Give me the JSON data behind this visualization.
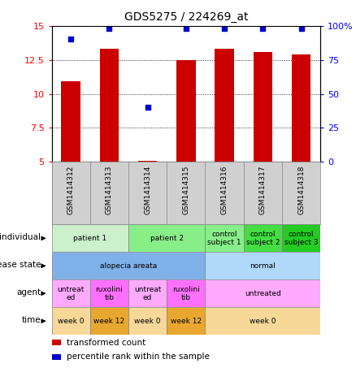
{
  "title": "GDS5275 / 224269_at",
  "samples": [
    "GSM1414312",
    "GSM1414313",
    "GSM1414314",
    "GSM1414315",
    "GSM1414316",
    "GSM1414317",
    "GSM1414318"
  ],
  "bar_values": [
    10.9,
    13.3,
    5.05,
    12.5,
    13.3,
    13.1,
    12.9
  ],
  "dot_values": [
    90,
    98,
    40,
    98,
    98,
    98,
    98
  ],
  "ylim_left": [
    5,
    15
  ],
  "ylim_right": [
    0,
    100
  ],
  "yticks_left": [
    5,
    7.5,
    10,
    12.5,
    15
  ],
  "yticks_right": [
    0,
    25,
    50,
    75,
    100
  ],
  "bar_color": "#cc0000",
  "dot_color": "#0000cc",
  "xticklabel_bg": "#d0d0d0",
  "annotation_rows": [
    {
      "key": "individual",
      "label": "individual",
      "groups": [
        {
          "span": [
            0,
            2
          ],
          "text": "patient 1",
          "color": "#ccf0cc"
        },
        {
          "span": [
            2,
            4
          ],
          "text": "patient 2",
          "color": "#88ee88"
        },
        {
          "span": [
            4,
            5
          ],
          "text": "control\nsubject 1",
          "color": "#88ee88"
        },
        {
          "span": [
            5,
            6
          ],
          "text": "control\nsubject 2",
          "color": "#44dd44"
        },
        {
          "span": [
            6,
            7
          ],
          "text": "control\nsubject 3",
          "color": "#22cc22"
        }
      ]
    },
    {
      "key": "disease_state",
      "label": "disease state",
      "groups": [
        {
          "span": [
            0,
            4
          ],
          "text": "alopecia areata",
          "color": "#80b0e8"
        },
        {
          "span": [
            4,
            7
          ],
          "text": "normal",
          "color": "#b0d8f8"
        }
      ]
    },
    {
      "key": "agent",
      "label": "agent",
      "groups": [
        {
          "span": [
            0,
            1
          ],
          "text": "untreat\ned",
          "color": "#ffaaff"
        },
        {
          "span": [
            1,
            2
          ],
          "text": "ruxolini\ntib",
          "color": "#ff70ff"
        },
        {
          "span": [
            2,
            3
          ],
          "text": "untreat\ned",
          "color": "#ffaaff"
        },
        {
          "span": [
            3,
            4
          ],
          "text": "ruxolini\ntib",
          "color": "#ff70ff"
        },
        {
          "span": [
            4,
            7
          ],
          "text": "untreated",
          "color": "#ffaaff"
        }
      ]
    },
    {
      "key": "time",
      "label": "time",
      "groups": [
        {
          "span": [
            0,
            1
          ],
          "text": "week 0",
          "color": "#f8d898"
        },
        {
          "span": [
            1,
            2
          ],
          "text": "week 12",
          "color": "#e8a830"
        },
        {
          "span": [
            2,
            3
          ],
          "text": "week 0",
          "color": "#f8d898"
        },
        {
          "span": [
            3,
            4
          ],
          "text": "week 12",
          "color": "#e8a830"
        },
        {
          "span": [
            4,
            7
          ],
          "text": "week 0",
          "color": "#f8d898"
        }
      ]
    }
  ],
  "legend": [
    {
      "color": "#cc0000",
      "label": "transformed count"
    },
    {
      "color": "#0000cc",
      "label": "percentile rank within the sample"
    }
  ]
}
